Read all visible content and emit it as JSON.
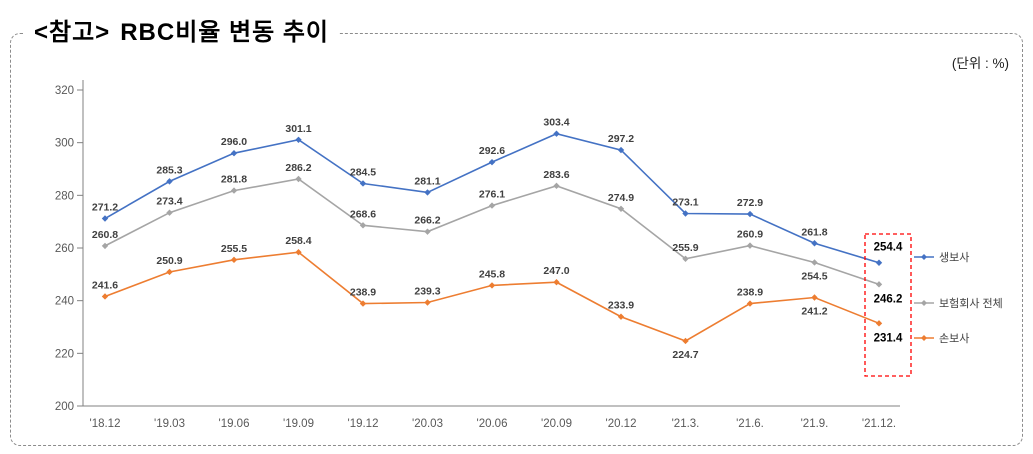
{
  "title": {
    "prefix": "<참고>",
    "main": "RBC비율  변동  추이"
  },
  "unit_label": "(단위 : %)",
  "chart_data": {
    "type": "line",
    "title": "RBC비율 변동 추이",
    "unit": "%",
    "categories": [
      "'18.12",
      "'19.03",
      "'19.06",
      "'19.09",
      "'19.12",
      "'20.03",
      "'20.06",
      "'20.09",
      "'20.12",
      "'21.3.",
      "'21.6.",
      "'21.9.",
      "'21.12."
    ],
    "series": [
      {
        "name": "생보사",
        "color": "#4472C4",
        "values": [
          271.2,
          285.3,
          296.0,
          301.1,
          284.5,
          281.1,
          292.6,
          303.4,
          297.2,
          273.1,
          272.9,
          261.8,
          254.4
        ]
      },
      {
        "name": "보험회사 전체",
        "color": "#A5A5A5",
        "values": [
          260.8,
          273.4,
          281.8,
          286.2,
          268.6,
          266.2,
          276.1,
          283.6,
          274.9,
          255.9,
          260.9,
          254.5,
          246.2
        ]
      },
      {
        "name": "손보사",
        "color": "#ED7D31",
        "values": [
          241.6,
          250.9,
          255.5,
          258.4,
          238.9,
          239.3,
          245.8,
          247.0,
          233.9,
          224.7,
          238.9,
          241.2,
          231.4
        ]
      }
    ],
    "ylim": [
      200,
      320
    ],
    "yticks": [
      200,
      220,
      240,
      260,
      280,
      300,
      320
    ],
    "grid": false,
    "legend_position": "right",
    "highlight": {
      "category_index": 12,
      "box_color": "#FF0000"
    }
  }
}
